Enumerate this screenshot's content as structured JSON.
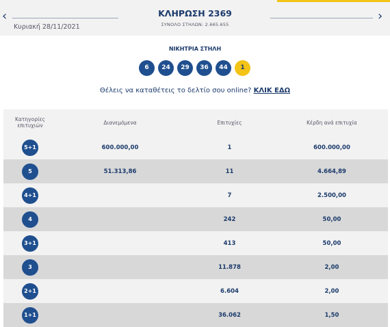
{
  "header": {
    "title": "ΚΛΗΡΩΣΗ 2369",
    "date": "Κυριακή 28/11/2021",
    "total_columns": "ΣΥΝΟΛΟ ΣΤΗΛΩΝ: 2.665.655",
    "prev_icon": "chevron-left-icon",
    "next_icon": "chevron-right-icon",
    "accent_color": "#f3c316"
  },
  "winning": {
    "label": "ΝΙΚΗΤΡΙΑ ΣΤΗΛΗ",
    "numbers": [
      "6",
      "24",
      "29",
      "36",
      "44"
    ],
    "joker": "1",
    "ball_color": "#1f4f8f",
    "joker_color": "#f3c316"
  },
  "promo": {
    "text": "Θέλεις να καταθέτεις το δελτίο σου online?",
    "link": "ΚΛΙΚ ΕΔΩ"
  },
  "table": {
    "headers": [
      "Κατηγορίες επιτυχιών",
      "Διανεμόμενα",
      "Επιτυχίες",
      "Κέρδη ανά επιτυχία"
    ],
    "rows": [
      {
        "category": "5+1",
        "distributed": "600.000,00",
        "winners": "1",
        "prize": "600.000,00"
      },
      {
        "category": "5",
        "distributed": "51.313,86",
        "winners": "11",
        "prize": "4.664,89"
      },
      {
        "category": "4+1",
        "distributed": "",
        "winners": "7",
        "prize": "2.500,00"
      },
      {
        "category": "4",
        "distributed": "",
        "winners": "242",
        "prize": "50,00"
      },
      {
        "category": "3+1",
        "distributed": "",
        "winners": "413",
        "prize": "50,00"
      },
      {
        "category": "3",
        "distributed": "",
        "winners": "11.878",
        "prize": "2,00"
      },
      {
        "category": "2+1",
        "distributed": "",
        "winners": "6.604",
        "prize": "2,00"
      },
      {
        "category": "1+1",
        "distributed": "",
        "winners": "36.062",
        "prize": "1,50"
      }
    ]
  }
}
